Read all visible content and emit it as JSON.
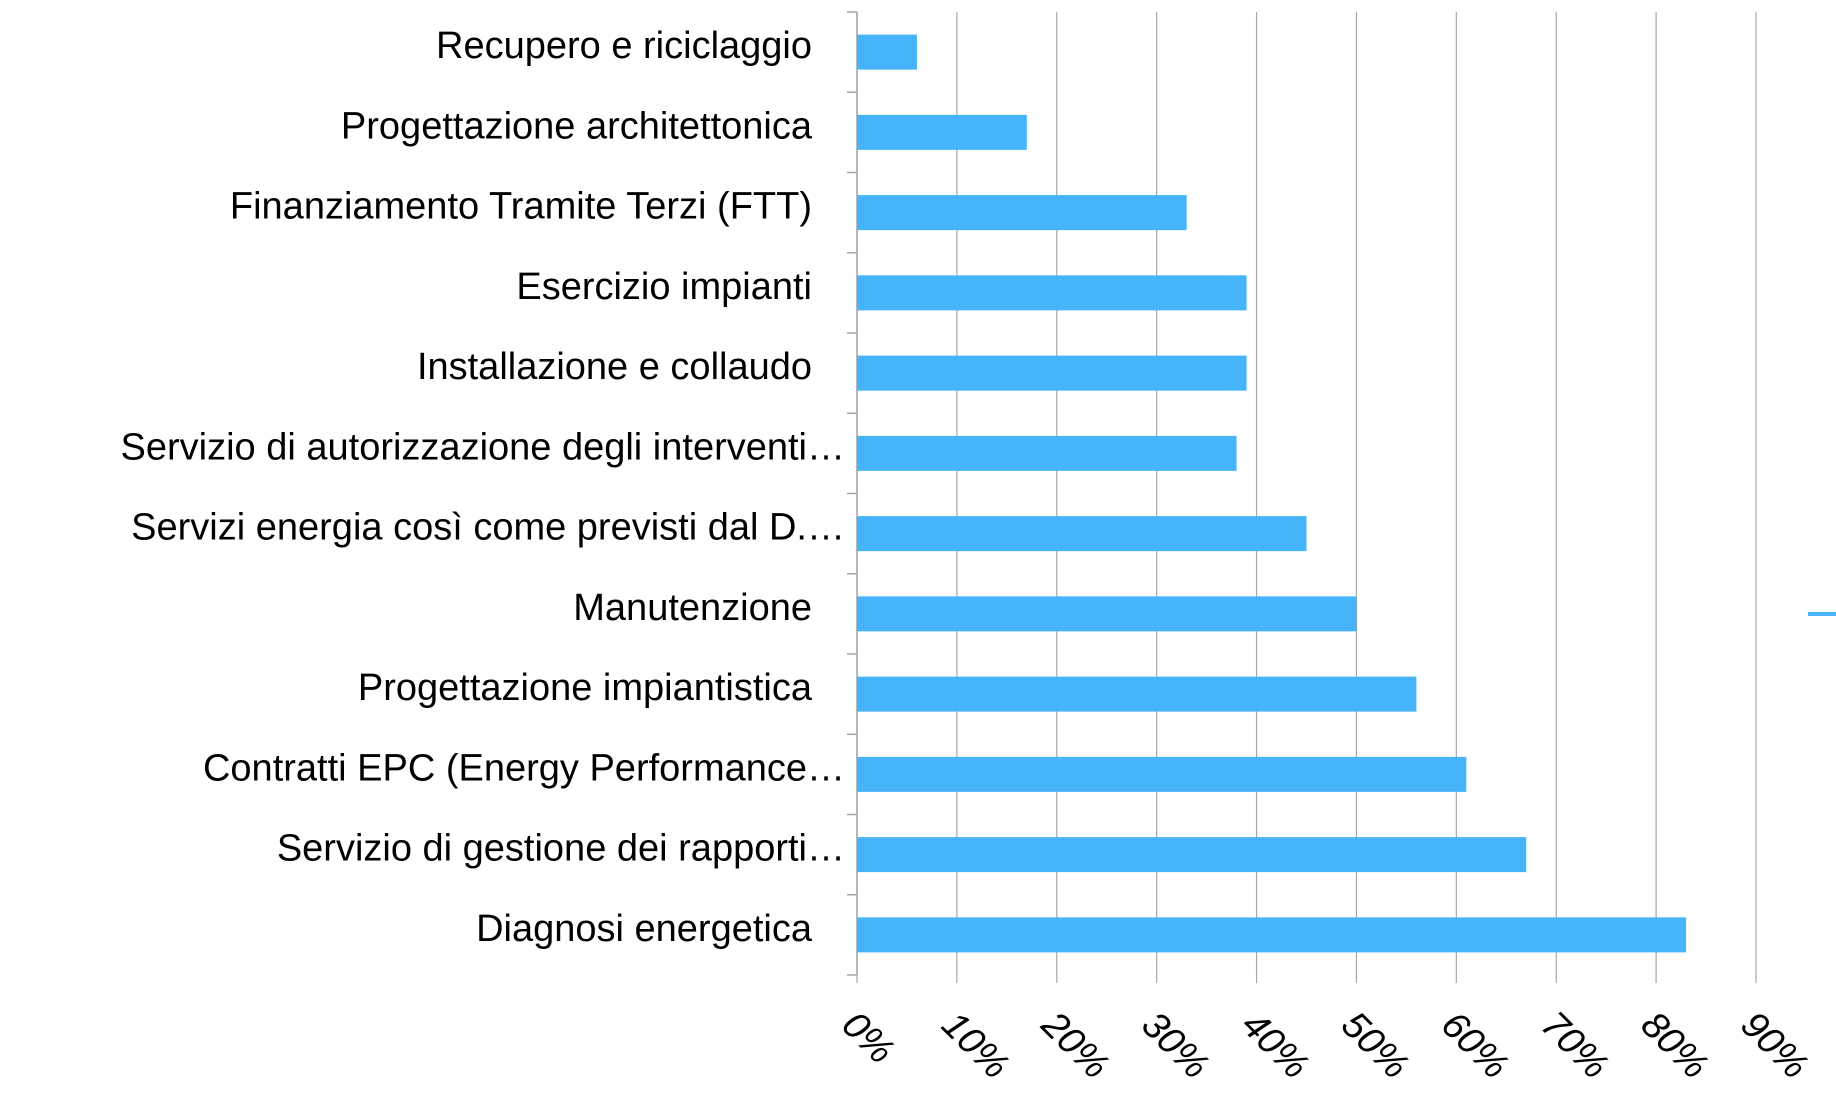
{
  "chart_data": {
    "type": "hbar",
    "categories": [
      "Recupero e riciclaggio",
      "Progettazione architettonica",
      "Finanziamento Tramite Terzi (FTT)",
      "Esercizio impianti",
      "Installazione e collaudo",
      "Servizio di autorizzazione degli interventi…",
      "Servizi energia così come previsti dal D.…",
      "Manutenzione",
      "Progettazione impiantistica",
      "Contratti EPC (Energy Performance…",
      "Servizio di gestione dei rapporti…",
      "Diagnosi energetica"
    ],
    "values": [
      6,
      17,
      33,
      39,
      39,
      38,
      45,
      50,
      56,
      61,
      67,
      83
    ],
    "color": "#45b4fb",
    "xlim": [
      0,
      90
    ],
    "xticks": [
      {
        "value": 0,
        "label": "0%"
      },
      {
        "value": 10,
        "label": "10%"
      },
      {
        "value": 20,
        "label": "20%"
      },
      {
        "value": 30,
        "label": "30%"
      },
      {
        "value": 40,
        "label": "40%"
      },
      {
        "value": 50,
        "label": "50%"
      },
      {
        "value": 60,
        "label": "60%"
      },
      {
        "value": 70,
        "label": "70%"
      },
      {
        "value": 80,
        "label": "80%"
      },
      {
        "value": 90,
        "label": "90%"
      }
    ],
    "grid": true
  }
}
